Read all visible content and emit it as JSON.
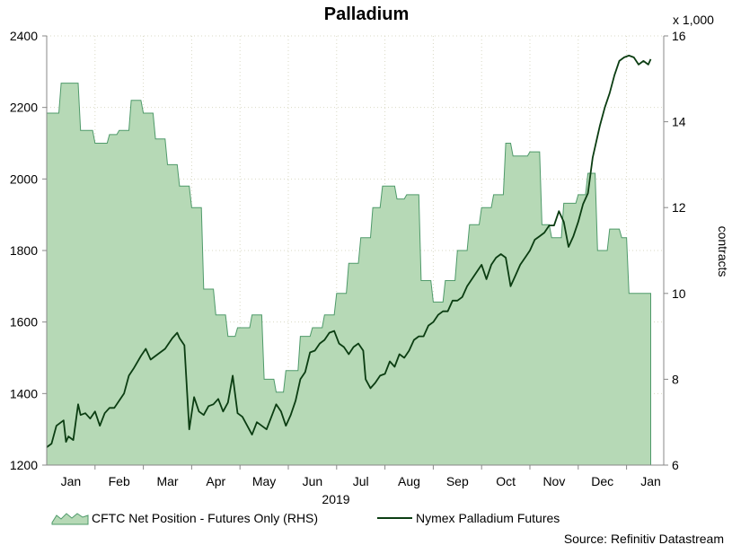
{
  "chart_data": {
    "type": "area+line",
    "title": "Palladium",
    "year_label": "2019",
    "x_months": [
      "Jan",
      "Feb",
      "Mar",
      "Apr",
      "May",
      "Jun",
      "Jul",
      "Aug",
      "Sep",
      "Oct",
      "Nov",
      "Dec",
      "Jan"
    ],
    "left_axis": {
      "ylim": [
        1200,
        2400
      ],
      "ticks": [
        "1200",
        "1400",
        "1600",
        "1800",
        "2000",
        "2200",
        "2400"
      ]
    },
    "right_axis": {
      "ylim": [
        6,
        16
      ],
      "ticks": [
        "6",
        "8",
        "10",
        "12",
        "14",
        "16"
      ],
      "unit_note": "x 1,000",
      "label": "contracts"
    },
    "grid": true,
    "legend": {
      "placement": "bottom",
      "entries": [
        "CFTC Net Position - Futures Only (RHS)",
        "Nymex Palladium Futures"
      ]
    },
    "source": "Source: Refinitiv Datastream",
    "colors": {
      "area_fill": "#b6d9b6",
      "area_line": "#4f9a6a",
      "price_line": "#0b3d12"
    },
    "series": [
      {
        "name": "CFTC Net Position - Futures Only (RHS)",
        "axis": "right",
        "x": [
          0.0,
          0.25,
          0.3,
          0.65,
          0.7,
          0.95,
          1.0,
          1.25,
          1.3,
          1.45,
          1.5,
          1.7,
          1.75,
          1.95,
          2.0,
          2.2,
          2.25,
          2.45,
          2.5,
          2.7,
          2.75,
          2.95,
          3.0,
          3.2,
          3.25,
          3.45,
          3.5,
          3.7,
          3.75,
          3.9,
          3.95,
          4.2,
          4.25,
          4.45,
          4.5,
          4.7,
          4.75,
          4.9,
          4.95,
          5.2,
          5.25,
          5.45,
          5.5,
          5.7,
          5.75,
          5.95,
          6.0,
          6.2,
          6.25,
          6.45,
          6.5,
          6.7,
          6.75,
          6.9,
          6.95,
          7.2,
          7.25,
          7.4,
          7.45,
          7.7,
          7.75,
          7.95,
          8.0,
          8.2,
          8.25,
          8.45,
          8.5,
          8.7,
          8.75,
          8.95,
          9.0,
          9.2,
          9.25,
          9.45,
          9.5,
          9.6,
          9.65,
          9.95,
          10.0,
          10.2,
          10.25,
          10.4,
          10.45,
          10.65,
          10.7,
          10.95,
          11.0,
          11.15,
          11.2,
          11.35,
          11.4,
          11.6,
          11.65,
          11.85,
          11.9,
          12.0,
          12.05,
          12.25,
          12.3,
          12.45,
          12.5
        ],
        "values": [
          14.2,
          14.2,
          14.9,
          14.9,
          13.8,
          13.8,
          13.5,
          13.5,
          13.7,
          13.7,
          13.8,
          13.8,
          14.5,
          14.5,
          14.2,
          14.2,
          13.6,
          13.6,
          13.0,
          13.0,
          12.5,
          12.5,
          12.0,
          12.0,
          10.1,
          10.1,
          9.5,
          9.5,
          9.0,
          9.0,
          9.2,
          9.2,
          9.5,
          9.5,
          8.0,
          8.0,
          7.7,
          7.7,
          8.2,
          8.2,
          9.0,
          9.0,
          9.2,
          9.2,
          9.5,
          9.5,
          10.0,
          10.0,
          10.7,
          10.7,
          11.3,
          11.3,
          12.0,
          12.0,
          12.5,
          12.5,
          12.2,
          12.2,
          12.3,
          12.3,
          10.3,
          10.3,
          9.8,
          9.8,
          10.3,
          10.3,
          11.0,
          11.0,
          11.6,
          11.6,
          12.0,
          12.0,
          12.3,
          12.3,
          13.5,
          13.5,
          13.2,
          13.2,
          13.3,
          13.3,
          11.6,
          11.6,
          11.3,
          11.3,
          12.1,
          12.1,
          12.3,
          12.3,
          12.8,
          12.8,
          11.0,
          11.0,
          11.5,
          11.5,
          11.3,
          11.3,
          10.0,
          10.0,
          10.0,
          10.0,
          10.0
        ]
      },
      {
        "name": "Nymex Palladium Futures",
        "axis": "left",
        "x": [
          0.0,
          0.1,
          0.2,
          0.35,
          0.4,
          0.45,
          0.55,
          0.65,
          0.7,
          0.8,
          0.9,
          1.0,
          1.1,
          1.2,
          1.3,
          1.4,
          1.5,
          1.6,
          1.7,
          1.8,
          1.95,
          2.05,
          2.15,
          2.3,
          2.45,
          2.6,
          2.7,
          2.75,
          2.85,
          2.95,
          3.05,
          3.15,
          3.25,
          3.35,
          3.45,
          3.55,
          3.65,
          3.75,
          3.85,
          3.95,
          4.05,
          4.15,
          4.25,
          4.35,
          4.45,
          4.55,
          4.65,
          4.75,
          4.85,
          4.95,
          5.05,
          5.15,
          5.25,
          5.35,
          5.45,
          5.55,
          5.65,
          5.75,
          5.85,
          5.95,
          6.05,
          6.15,
          6.25,
          6.35,
          6.45,
          6.55,
          6.6,
          6.7,
          6.8,
          6.9,
          7.0,
          7.1,
          7.2,
          7.3,
          7.4,
          7.5,
          7.6,
          7.7,
          7.8,
          7.9,
          8.0,
          8.1,
          8.2,
          8.3,
          8.4,
          8.5,
          8.6,
          8.7,
          8.8,
          8.9,
          9.0,
          9.1,
          9.2,
          9.3,
          9.4,
          9.5,
          9.6,
          9.7,
          9.8,
          9.9,
          10.0,
          10.1,
          10.2,
          10.3,
          10.4,
          10.5,
          10.6,
          10.7,
          10.8,
          10.9,
          11.0,
          11.1,
          11.2,
          11.3,
          11.4,
          11.45,
          11.55,
          11.65,
          11.75,
          11.85,
          11.95,
          12.05,
          12.15,
          12.25,
          12.35,
          12.45,
          12.5
        ],
        "values": [
          1250,
          1260,
          1310,
          1325,
          1265,
          1280,
          1270,
          1370,
          1340,
          1345,
          1330,
          1350,
          1310,
          1345,
          1360,
          1360,
          1380,
          1400,
          1450,
          1470,
          1505,
          1525,
          1495,
          1510,
          1525,
          1555,
          1570,
          1555,
          1535,
          1300,
          1390,
          1350,
          1340,
          1365,
          1370,
          1385,
          1350,
          1375,
          1450,
          1345,
          1335,
          1310,
          1285,
          1320,
          1310,
          1300,
          1335,
          1370,
          1350,
          1310,
          1340,
          1380,
          1440,
          1460,
          1515,
          1520,
          1540,
          1550,
          1570,
          1575,
          1540,
          1530,
          1510,
          1530,
          1540,
          1520,
          1440,
          1415,
          1430,
          1450,
          1455,
          1490,
          1475,
          1510,
          1500,
          1520,
          1550,
          1560,
          1560,
          1590,
          1600,
          1620,
          1630,
          1630,
          1660,
          1660,
          1670,
          1700,
          1720,
          1740,
          1760,
          1720,
          1760,
          1780,
          1790,
          1780,
          1700,
          1730,
          1760,
          1780,
          1800,
          1830,
          1840,
          1850,
          1870,
          1870,
          1910,
          1880,
          1810,
          1840,
          1880,
          1930,
          1960,
          2060,
          2120,
          2150,
          2200,
          2240,
          2290,
          2330,
          2340,
          2345,
          2340,
          2320,
          2330,
          2320,
          2335
        ]
      }
    ]
  }
}
